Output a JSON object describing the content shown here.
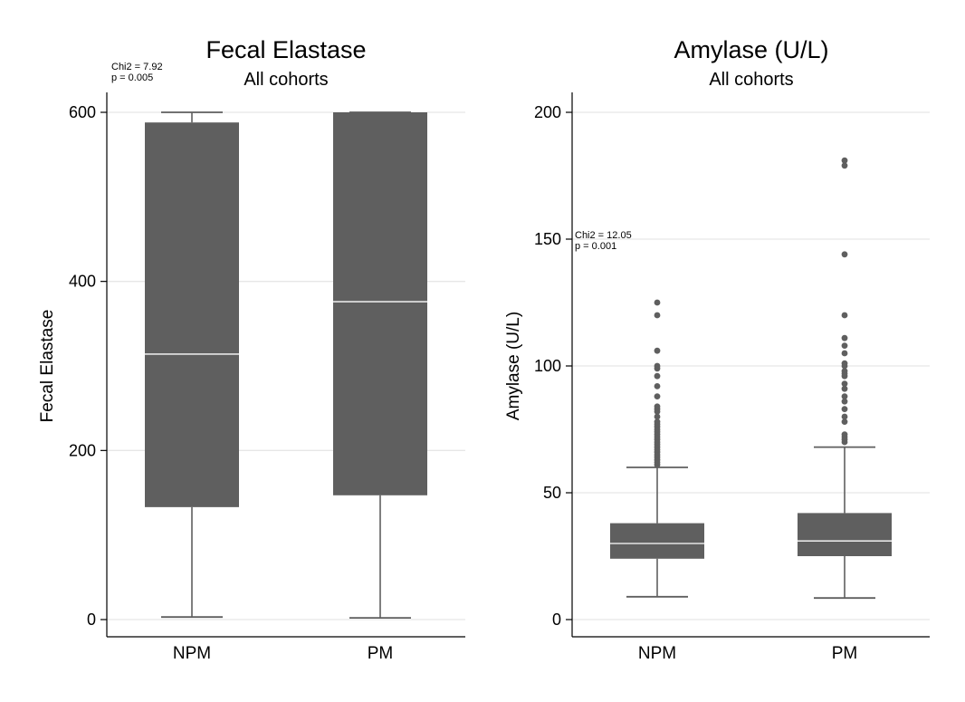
{
  "colors": {
    "box": "#5f5f5f",
    "median": "#ffffff",
    "grid": "#e6e6e6",
    "axis": "#000000"
  },
  "chart_data": [
    {
      "type": "box",
      "title": "Fecal Elastase",
      "subtitle": "All cohorts",
      "ylabel": "Fecal Elastase",
      "ylim": [
        0,
        600
      ],
      "yticks": [
        0,
        200,
        400,
        600
      ],
      "grid": true,
      "annotation": [
        "Chi2 = 7.92",
        "p = 0.005"
      ],
      "categories": [
        "NPM",
        "PM"
      ],
      "boxes": [
        {
          "category": "NPM",
          "whisker_low": 3,
          "q1": 133,
          "median": 314,
          "q3": 588,
          "whisker_high": 600,
          "outliers": []
        },
        {
          "category": "PM",
          "whisker_low": 2,
          "q1": 147,
          "median": 376,
          "q3": 600,
          "whisker_high": 600,
          "outliers": []
        }
      ]
    },
    {
      "type": "box",
      "title": "Amylase (U/L)",
      "subtitle": "All cohorts",
      "ylabel": "Amylase (U/L)",
      "ylim": [
        0,
        200
      ],
      "yticks": [
        0,
        50,
        100,
        150,
        200
      ],
      "grid": true,
      "annotation": [
        "Chi2 = 12.05",
        "p = 0.001"
      ],
      "categories": [
        "NPM",
        "PM"
      ],
      "boxes": [
        {
          "category": "NPM",
          "whisker_low": 9,
          "q1": 24,
          "median": 30,
          "q3": 38,
          "whisker_high": 60,
          "outliers": [
            61,
            62,
            63,
            64,
            65,
            66,
            67,
            68,
            69,
            70,
            71,
            72,
            73,
            74,
            75,
            76,
            77,
            78,
            80,
            82,
            83,
            84,
            88,
            92,
            96,
            99,
            100,
            106,
            120,
            125
          ]
        },
        {
          "category": "PM",
          "whisker_low": 8.5,
          "q1": 25,
          "median": 31,
          "q3": 42,
          "whisker_high": 68,
          "outliers": [
            70,
            71,
            72,
            73,
            78,
            80,
            83,
            86,
            88,
            91,
            93,
            96,
            97,
            98,
            100,
            101,
            105,
            108,
            111,
            120,
            144,
            179,
            181
          ]
        }
      ]
    }
  ]
}
